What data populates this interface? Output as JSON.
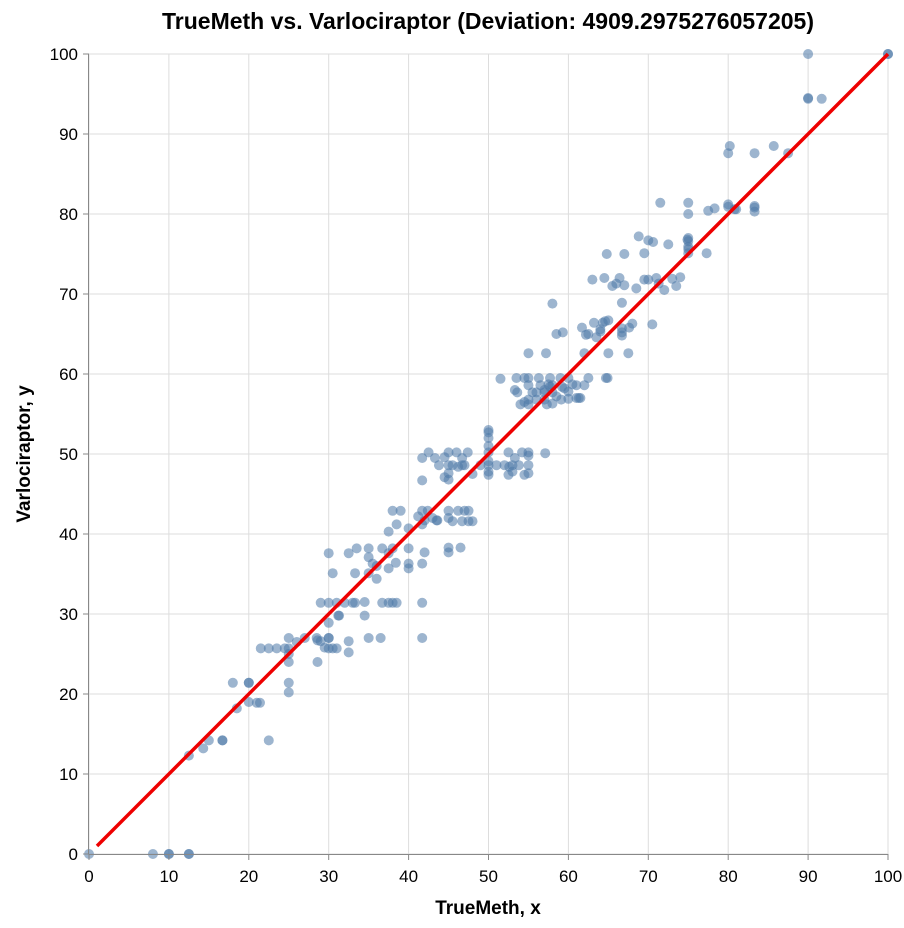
{
  "chart_data": {
    "type": "scatter",
    "title": "TrueMeth vs. Varlociraptor (Deviation: 4909.2975276057205)",
    "xlabel": "TrueMeth, x",
    "ylabel": "Varlociraptor, y",
    "xlim": [
      0,
      100
    ],
    "ylim": [
      0,
      100
    ],
    "x_ticks": [
      0,
      10,
      20,
      30,
      40,
      50,
      60,
      70,
      80,
      90,
      100
    ],
    "y_ticks": [
      0,
      10,
      20,
      30,
      40,
      50,
      60,
      70,
      80,
      90,
      100
    ],
    "grid": true,
    "point_color": "#4c78a8",
    "line_color": "#ee0000",
    "series": [
      {
        "kind": "points",
        "points": [
          [
            0,
            0
          ],
          [
            8,
            0
          ],
          [
            10,
            0
          ],
          [
            10,
            0
          ],
          [
            12.5,
            0
          ],
          [
            12.5,
            0
          ],
          [
            12.5,
            12.3
          ],
          [
            14.3,
            13.2
          ],
          [
            15,
            14.2
          ],
          [
            16.7,
            14.2
          ],
          [
            16.7,
            14.2
          ],
          [
            18,
            21.4
          ],
          [
            18.5,
            18.2
          ],
          [
            20,
            21.4
          ],
          [
            20,
            21.4
          ],
          [
            20,
            19
          ],
          [
            21,
            18.9
          ],
          [
            21.4,
            18.9
          ],
          [
            22.5,
            14.2
          ],
          [
            21.5,
            25.7
          ],
          [
            22.5,
            25.7
          ],
          [
            23.5,
            25.7
          ],
          [
            24.5,
            25.7
          ],
          [
            25,
            25.7
          ],
          [
            25,
            25
          ],
          [
            25,
            24
          ],
          [
            25,
            27
          ],
          [
            25,
            21.4
          ],
          [
            25,
            20.2
          ],
          [
            26,
            26.5
          ],
          [
            27,
            27
          ],
          [
            28.5,
            27
          ],
          [
            28.6,
            26.7
          ],
          [
            28.6,
            24
          ],
          [
            29,
            26.6
          ],
          [
            30,
            27
          ],
          [
            30,
            27
          ],
          [
            29.5,
            25.8
          ],
          [
            30,
            25.7
          ],
          [
            30,
            28.9
          ],
          [
            30.5,
            25.7
          ],
          [
            31,
            25.7
          ],
          [
            32.5,
            26.6
          ],
          [
            32.5,
            25.2
          ],
          [
            29,
            31.4
          ],
          [
            30,
            31.4
          ],
          [
            31,
            31.4
          ],
          [
            31.2,
            29.8
          ],
          [
            31.3,
            29.8
          ],
          [
            32,
            31.4
          ],
          [
            33,
            31.4
          ],
          [
            33.3,
            31.4
          ],
          [
            34.5,
            29.8
          ],
          [
            34.5,
            31.5
          ],
          [
            30,
            37.6
          ],
          [
            30.5,
            35.1
          ],
          [
            32.5,
            37.6
          ],
          [
            33.3,
            35.1
          ],
          [
            33.5,
            38.2
          ],
          [
            35,
            35.1
          ],
          [
            35,
            37.1
          ],
          [
            35.5,
            36.3
          ],
          [
            36,
            36
          ],
          [
            35,
            38.2
          ],
          [
            36,
            34.4
          ],
          [
            36.7,
            38.2
          ],
          [
            37.5,
            35.7
          ],
          [
            37.5,
            37.6
          ],
          [
            37.5,
            40.3
          ],
          [
            38,
            38.2
          ],
          [
            38.4,
            36.4
          ],
          [
            35,
            27
          ],
          [
            36.5,
            27
          ],
          [
            36.7,
            31.4
          ],
          [
            37.5,
            31.4
          ],
          [
            38,
            31.4
          ],
          [
            38.5,
            31.4
          ],
          [
            38,
            42.9
          ],
          [
            38.5,
            41.2
          ],
          [
            39,
            42.9
          ],
          [
            40,
            40.7
          ],
          [
            40,
            38.2
          ],
          [
            40,
            36.3
          ],
          [
            40,
            35.7
          ],
          [
            41.2,
            42.2
          ],
          [
            41.7,
            42.9
          ],
          [
            41.7,
            41.2
          ],
          [
            41.7,
            36.3
          ],
          [
            42,
            37.7
          ],
          [
            42,
            41.7
          ],
          [
            42.4,
            42.9
          ],
          [
            43,
            42
          ],
          [
            43.5,
            41.7
          ],
          [
            43.6,
            41.7
          ],
          [
            41.7,
            31.4
          ],
          [
            41.7,
            27
          ],
          [
            41.7,
            46.7
          ],
          [
            41.7,
            49.5
          ],
          [
            42.5,
            50.2
          ],
          [
            43.3,
            49.5
          ],
          [
            43.8,
            48.6
          ],
          [
            44.5,
            47.1
          ],
          [
            44.5,
            49.6
          ],
          [
            45,
            50.2
          ],
          [
            45,
            48.6
          ],
          [
            45,
            47.6
          ],
          [
            45,
            46.8
          ],
          [
            45,
            42.9
          ],
          [
            45,
            42
          ],
          [
            45,
            38.3
          ],
          [
            45,
            37.7
          ],
          [
            45.5,
            48.6
          ],
          [
            45.5,
            41.6
          ],
          [
            46,
            50.2
          ],
          [
            46.2,
            48.4
          ],
          [
            46.2,
            42.9
          ],
          [
            46.5,
            38.3
          ],
          [
            46.7,
            49.5
          ],
          [
            46.7,
            48.6
          ],
          [
            46.7,
            41.6
          ],
          [
            47,
            48.6
          ],
          [
            47,
            42.9
          ],
          [
            47.4,
            50.2
          ],
          [
            47.5,
            41.6
          ],
          [
            47.5,
            42.9
          ],
          [
            48,
            47.5
          ],
          [
            48,
            41.6
          ],
          [
            49,
            48.6
          ],
          [
            50,
            50.2
          ],
          [
            50,
            49.1
          ],
          [
            50,
            48.6
          ],
          [
            50,
            47.8
          ],
          [
            50,
            47.4
          ],
          [
            50,
            52.7
          ],
          [
            50,
            52
          ],
          [
            50,
            53
          ],
          [
            50,
            51
          ],
          [
            51,
            48.6
          ],
          [
            51.5,
            59.4
          ],
          [
            52,
            48.6
          ],
          [
            52.5,
            50.2
          ],
          [
            52.5,
            47.4
          ],
          [
            52.6,
            48.4
          ],
          [
            53,
            48.6
          ],
          [
            53,
            47.8
          ],
          [
            53.3,
            49.5
          ],
          [
            53.3,
            58
          ],
          [
            53.5,
            59.5
          ],
          [
            53.6,
            57.7
          ],
          [
            53.8,
            48.6
          ],
          [
            54,
            56.2
          ],
          [
            54.2,
            50.2
          ],
          [
            54.5,
            56.5
          ],
          [
            54.5,
            47.4
          ],
          [
            54.5,
            59.5
          ],
          [
            55,
            50.2
          ],
          [
            55,
            49.8
          ],
          [
            55,
            48.6
          ],
          [
            55,
            59.5
          ],
          [
            55,
            58.6
          ],
          [
            55,
            62.6
          ],
          [
            55,
            56.8
          ],
          [
            55,
            56.2
          ],
          [
            55,
            47.6
          ],
          [
            55.5,
            57.7
          ],
          [
            56,
            56.8
          ],
          [
            56,
            57.7
          ],
          [
            56.3,
            59.5
          ],
          [
            56.5,
            58.6
          ],
          [
            57,
            56.8
          ],
          [
            57,
            57.7
          ],
          [
            57,
            58
          ],
          [
            57.1,
            50.1
          ],
          [
            57.2,
            62.6
          ],
          [
            57.3,
            56.2
          ],
          [
            57.5,
            58.7
          ],
          [
            57.7,
            58.4
          ],
          [
            57.7,
            59.5
          ],
          [
            58,
            56.3
          ],
          [
            58,
            57.7
          ],
          [
            58,
            58.6
          ],
          [
            58,
            68.8
          ],
          [
            58.5,
            65
          ],
          [
            58.5,
            57.2
          ],
          [
            59,
            59.5
          ],
          [
            59.1,
            56.8
          ],
          [
            59.2,
            58.4
          ],
          [
            59.3,
            65.2
          ],
          [
            59.5,
            58.2
          ],
          [
            60,
            56.9
          ],
          [
            60,
            59.5
          ],
          [
            60,
            57.8
          ],
          [
            60.5,
            58.7
          ],
          [
            61,
            57
          ],
          [
            61,
            58.6
          ],
          [
            61.3,
            57
          ],
          [
            61.5,
            57
          ],
          [
            61.7,
            65.8
          ],
          [
            62,
            58.6
          ],
          [
            62,
            62.6
          ],
          [
            62.2,
            64.9
          ],
          [
            62.5,
            65
          ],
          [
            62.5,
            59.5
          ],
          [
            63,
            71.8
          ],
          [
            63.2,
            66.4
          ],
          [
            63.5,
            64.6
          ],
          [
            64,
            65.3
          ],
          [
            64,
            65.6
          ],
          [
            64.3,
            66.4
          ],
          [
            64.5,
            72
          ],
          [
            64.6,
            66.6
          ],
          [
            64.7,
            59.5
          ],
          [
            64.8,
            75
          ],
          [
            64.9,
            59.5
          ],
          [
            65,
            62.6
          ],
          [
            65,
            66.7
          ],
          [
            65.5,
            71
          ],
          [
            66,
            71.3
          ],
          [
            66.4,
            72
          ],
          [
            66.7,
            65.7
          ],
          [
            66.7,
            68.9
          ],
          [
            66.7,
            65.2
          ],
          [
            66.7,
            64.8
          ],
          [
            67,
            71.1
          ],
          [
            67,
            75
          ],
          [
            67.5,
            62.6
          ],
          [
            67.6,
            65.8
          ],
          [
            68,
            66.3
          ],
          [
            68.5,
            70.7
          ],
          [
            68.8,
            77.2
          ],
          [
            69.5,
            75.1
          ],
          [
            69.5,
            71.8
          ],
          [
            70,
            71.8
          ],
          [
            70,
            76.7
          ],
          [
            70.5,
            66.2
          ],
          [
            70.6,
            76.5
          ],
          [
            71,
            72
          ],
          [
            71.3,
            71.3
          ],
          [
            71.5,
            81.4
          ],
          [
            72,
            70.5
          ],
          [
            72.5,
            76.2
          ],
          [
            73,
            71.9
          ],
          [
            73.5,
            71
          ],
          [
            74,
            72.1
          ],
          [
            74.9,
            76.8
          ],
          [
            75,
            81.4
          ],
          [
            75,
            80
          ],
          [
            75,
            77
          ],
          [
            75,
            76.6
          ],
          [
            75,
            75.9
          ],
          [
            75,
            75.1
          ],
          [
            75,
            75.6
          ],
          [
            77.3,
            75.1
          ],
          [
            77.5,
            80.4
          ],
          [
            78.3,
            80.7
          ],
          [
            80,
            80.9
          ],
          [
            80,
            81.2
          ],
          [
            80,
            87.6
          ],
          [
            80.2,
            88.5
          ],
          [
            80.8,
            80.6
          ],
          [
            81,
            80.6
          ],
          [
            83.3,
            81
          ],
          [
            83.3,
            80.3
          ],
          [
            83.3,
            80.8
          ],
          [
            83.3,
            87.6
          ],
          [
            85.7,
            88.5
          ],
          [
            87.5,
            87.6
          ],
          [
            90,
            94.5
          ],
          [
            90,
            94.4
          ],
          [
            90,
            100
          ],
          [
            91.7,
            94.4
          ],
          [
            100,
            100
          ],
          [
            100,
            100
          ]
        ]
      },
      {
        "kind": "line",
        "name": "",
        "points": [
          [
            1,
            1
          ],
          [
            100,
            100
          ]
        ]
      }
    ]
  }
}
